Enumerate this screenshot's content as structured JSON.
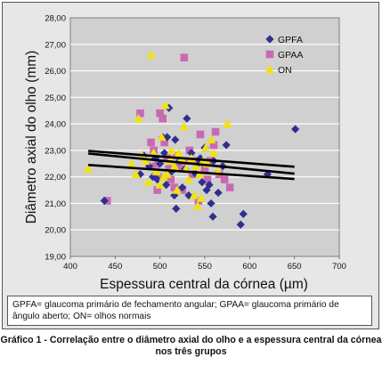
{
  "chart_data": {
    "type": "scatter",
    "xlabel": "Espessura central da córnea (µm)",
    "ylabel": "Diâmetro axial do olho (mm)",
    "xlim": [
      400,
      700
    ],
    "ylim": [
      19.0,
      28.0
    ],
    "x_ticks": [
      "400",
      "450",
      "500",
      "550",
      "600",
      "650",
      "700"
    ],
    "y_ticks": [
      "19,00",
      "20,00",
      "21,00",
      "22,00",
      "23,00",
      "24,00",
      "25,00",
      "26,00",
      "27,00",
      "28,00"
    ],
    "grid": true,
    "legend_position": "top-right",
    "series": [
      {
        "name": "GPFA",
        "marker": "diamond",
        "color": "#2e2f8f",
        "points": [
          [
            438,
            21.1
          ],
          [
            478,
            22.1
          ],
          [
            482,
            22.8
          ],
          [
            488,
            22.4
          ],
          [
            492,
            22.0
          ],
          [
            495,
            22.7
          ],
          [
            497,
            21.9
          ],
          [
            500,
            22.5
          ],
          [
            503,
            23.5
          ],
          [
            505,
            22.9
          ],
          [
            507,
            21.7
          ],
          [
            508,
            23.5
          ],
          [
            510,
            24.6
          ],
          [
            513,
            22.2
          ],
          [
            516,
            21.3
          ],
          [
            517,
            23.4
          ],
          [
            518,
            20.8
          ],
          [
            522,
            22.6
          ],
          [
            525,
            21.6
          ],
          [
            528,
            22.3
          ],
          [
            530,
            24.2
          ],
          [
            532,
            21.3
          ],
          [
            535,
            22.9
          ],
          [
            540,
            22.1
          ],
          [
            542,
            22.5
          ],
          [
            545,
            22.7
          ],
          [
            547,
            21.8
          ],
          [
            550,
            23.1
          ],
          [
            552,
            21.5
          ],
          [
            555,
            21.7
          ],
          [
            557,
            21.0
          ],
          [
            559,
            20.5
          ],
          [
            560,
            22.6
          ],
          [
            565,
            21.4
          ],
          [
            570,
            22.4
          ],
          [
            574,
            23.2
          ],
          [
            590,
            20.2
          ],
          [
            593,
            20.6
          ],
          [
            620,
            22.1
          ],
          [
            651,
            23.8
          ]
        ]
      },
      {
        "name": "GPAA",
        "marker": "square",
        "color": "#c86ab2",
        "points": [
          [
            441,
            21.1
          ],
          [
            478,
            24.4
          ],
          [
            490,
            23.3
          ],
          [
            493,
            23.0
          ],
          [
            495,
            22.4
          ],
          [
            497,
            21.5
          ],
          [
            498,
            22.0
          ],
          [
            500,
            24.4
          ],
          [
            503,
            24.2
          ],
          [
            505,
            23.3
          ],
          [
            508,
            22.7
          ],
          [
            510,
            22.3
          ],
          [
            512,
            21.9
          ],
          [
            516,
            21.6
          ],
          [
            519,
            22.8
          ],
          [
            522,
            22.4
          ],
          [
            525,
            21.5
          ],
          [
            527,
            26.5
          ],
          [
            530,
            22.6
          ],
          [
            533,
            23.0
          ],
          [
            536,
            22.1
          ],
          [
            539,
            22.6
          ],
          [
            543,
            21.1
          ],
          [
            545,
            23.6
          ],
          [
            550,
            22.3
          ],
          [
            553,
            21.9
          ],
          [
            556,
            22.6
          ],
          [
            560,
            23.2
          ],
          [
            562,
            23.7
          ],
          [
            566,
            22.1
          ],
          [
            572,
            21.9
          ],
          [
            578,
            21.6
          ]
        ]
      },
      {
        "name": "ON",
        "marker": "triangle",
        "color": "#f0e210",
        "points": [
          [
            420,
            22.3
          ],
          [
            468,
            22.5
          ],
          [
            473,
            22.1
          ],
          [
            476,
            24.2
          ],
          [
            480,
            22.8
          ],
          [
            484,
            22.6
          ],
          [
            487,
            21.8
          ],
          [
            490,
            26.6
          ],
          [
            493,
            22.9
          ],
          [
            496,
            22.2
          ],
          [
            500,
            21.7
          ],
          [
            502,
            23.5
          ],
          [
            504,
            22.0
          ],
          [
            506,
            24.7
          ],
          [
            508,
            22.1
          ],
          [
            511,
            22.6
          ],
          [
            513,
            23.0
          ],
          [
            516,
            22.4
          ],
          [
            519,
            21.5
          ],
          [
            521,
            22.9
          ],
          [
            524,
            22.7
          ],
          [
            527,
            23.9
          ],
          [
            529,
            22.3
          ],
          [
            532,
            21.9
          ],
          [
            535,
            22.7
          ],
          [
            538,
            21.3
          ],
          [
            540,
            22.4
          ],
          [
            542,
            20.9
          ],
          [
            544,
            22.1
          ],
          [
            546,
            21.2
          ],
          [
            548,
            22.6
          ],
          [
            551,
            23.1
          ],
          [
            553,
            22.5
          ],
          [
            557,
            23.4
          ],
          [
            560,
            22.9
          ],
          [
            565,
            22.2
          ],
          [
            575,
            24.0
          ]
        ]
      }
    ],
    "trend_lines": [
      {
        "x": [
          420,
          650
        ],
        "y": [
          22.98,
          22.38
        ]
      },
      {
        "x": [
          420,
          650
        ],
        "y": [
          22.88,
          22.12
        ]
      },
      {
        "x": [
          420,
          650
        ],
        "y": [
          22.45,
          21.92
        ]
      }
    ]
  },
  "legend_note": "GPFA= glaucoma primário de fechamento angular; GPAA= glaucoma primário de ângulo aberto; ON= olhos normais",
  "caption": {
    "label": "Gráfico 1 -",
    "text": "Correlação entre o diâmetro axial do olho e a espessura central da córnea nos três grupos"
  }
}
